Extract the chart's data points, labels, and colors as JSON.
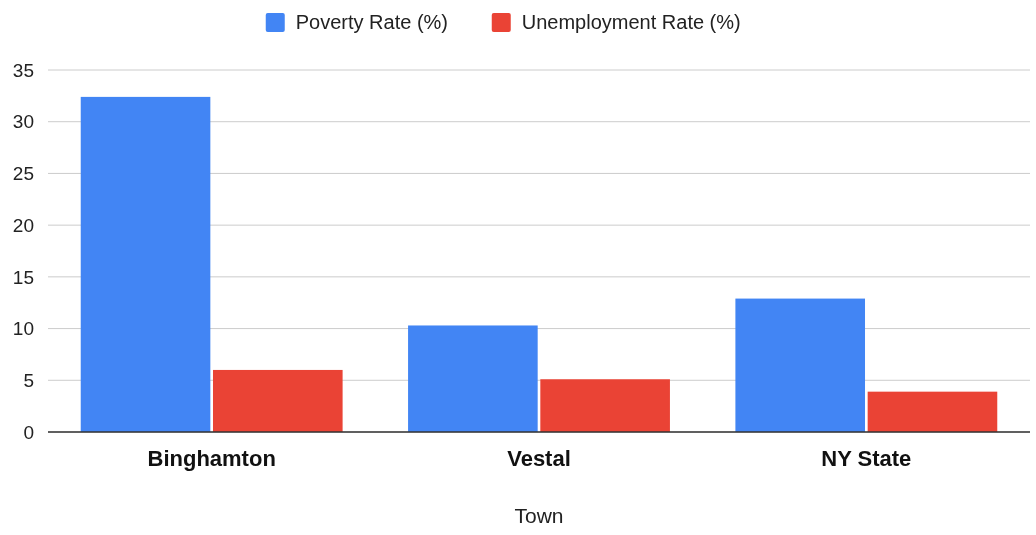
{
  "chart_data": {
    "type": "bar",
    "xlabel": "Town",
    "categories": [
      "Binghamton",
      "Vestal",
      "NY State"
    ],
    "series": [
      {
        "name": "Poverty Rate (%)",
        "color": "#4285f4",
        "values": [
          32.4,
          10.3,
          12.9
        ]
      },
      {
        "name": "Unemployment Rate (%)",
        "color": "#ea4335",
        "values": [
          6.0,
          5.1,
          3.9
        ]
      }
    ],
    "ylim": [
      0,
      35
    ],
    "yticks": [
      0,
      5,
      10,
      15,
      20,
      25,
      30,
      35
    ],
    "grid": "y",
    "legend": "top"
  }
}
